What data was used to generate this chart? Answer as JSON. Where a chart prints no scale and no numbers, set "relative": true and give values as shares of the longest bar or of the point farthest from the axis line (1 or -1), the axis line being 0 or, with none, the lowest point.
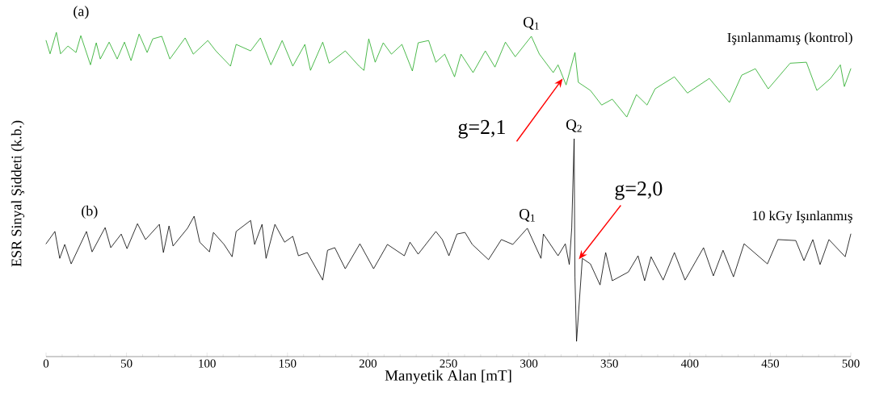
{
  "chart_data": {
    "type": "line",
    "relative": true,
    "xlabel": "Manyetik Alan [mT]",
    "ylabel": "ESR Sinyal Şiddeti (k.b.)",
    "xlim": [
      0,
      500
    ],
    "xticks": [
      0,
      50,
      100,
      150,
      200,
      250,
      300,
      350,
      400,
      450,
      500
    ],
    "annotations": [
      "(a)",
      "(b)",
      {
        "text": "Q$_{1}$",
        "x": 301.5,
        "y": 0.988
      },
      {
        "text": "Q$_{1}$",
        "x": 299.0,
        "y": 0.396
      },
      {
        "text": "Q$_{2}$",
        "x": 328.1,
        "y": 0.672
      },
      {
        "text": "g=2,1",
        "x": 321,
        "y": 0.858
      },
      {
        "text": "g=2,0",
        "x": 331,
        "y": 0.3
      }
    ],
    "series": [
      {
        "name": "Işınlanmamış (kontrol)",
        "color": "#1fa81f",
        "x": [
          0,
          2.5,
          6.4,
          9.0,
          13.6,
          18.6,
          21.6,
          27.6,
          31.2,
          33.7,
          39.2,
          44.2,
          48.7,
          52.8,
          57.8,
          62.8,
          66.3,
          71.9,
          76.9,
          86.4,
          91.5,
          100.5,
          105.5,
          114.6,
          118.1,
          127.1,
          133.2,
          139.7,
          146.7,
          153.3,
          160.8,
          164.3,
          171.9,
          175.9,
          185.9,
          194.5,
          197.5,
          200.5,
          204.5,
          209.5,
          214.6,
          221.1,
          227.6,
          231.2,
          237.7,
          242.2,
          247.7,
          253.8,
          257.8,
          265.3,
          272.9,
          278.9,
          285.4,
          291.5,
          301.5,
          306.5,
          315.1,
          318.1,
          323.1,
          328.6,
          330.7,
          338.2,
          345.2,
          351.8,
          360.8,
          366.8,
          373.4,
          378.4,
          390.4,
          398.5,
          412.1,
          424.6,
          432.2,
          440.7,
          448.7,
          462.3,
          472.4,
          478.9,
          487.4,
          493.5,
          496.0,
          500
        ],
        "values": [
          0.975,
          0.934,
          1.0,
          0.934,
          0.958,
          0.938,
          0.99,
          0.9,
          0.968,
          0.918,
          0.97,
          0.918,
          0.97,
          0.913,
          0.995,
          0.938,
          0.98,
          0.988,
          0.918,
          0.983,
          0.933,
          0.975,
          0.943,
          0.896,
          0.963,
          0.943,
          0.983,
          0.9,
          0.975,
          0.896,
          0.963,
          0.883,
          0.97,
          0.905,
          0.943,
          0.896,
          0.883,
          0.98,
          0.908,
          0.968,
          0.933,
          0.963,
          0.881,
          0.968,
          0.975,
          0.908,
          0.933,
          0.863,
          0.933,
          0.876,
          0.943,
          0.893,
          0.97,
          0.925,
          0.988,
          0.933,
          0.876,
          0.9,
          0.838,
          0.938,
          0.846,
          0.821,
          0.776,
          0.794,
          0.739,
          0.808,
          0.776,
          0.826,
          0.863,
          0.813,
          0.858,
          0.784,
          0.868,
          0.888,
          0.826,
          0.905,
          0.908,
          0.821,
          0.858,
          0.9,
          0.833,
          0.888
        ]
      },
      {
        "name": "10 kGy Işınlanmış",
        "color": "#000000",
        "x": [
          0,
          5.5,
          8.5,
          11.6,
          15.6,
          25.1,
          28.6,
          36.7,
          40.2,
          46.7,
          50.3,
          56.8,
          61.8,
          70.4,
          72.9,
          76.4,
          78.9,
          87.9,
          92.0,
          95.5,
          101.5,
          104.0,
          110.6,
          115.6,
          118.1,
          127.1,
          129.6,
          134.2,
          136.7,
          142.2,
          148.2,
          153.3,
          156.8,
          162.3,
          171.9,
          174.9,
          179.4,
          185.9,
          195.0,
          203.5,
          212.1,
          222.6,
          226.1,
          231.2,
          242.2,
          246.2,
          250.3,
          255.3,
          260.3,
          264.8,
          274.9,
          282.9,
          290.0,
          299.0,
          307.5,
          309.0,
          318.1,
          322.6,
          325.1,
          326.6,
          328.1,
          328.6,
          329.6,
          333.2,
          338.2,
          344.2,
          347.7,
          351.8,
          361.8,
          367.8,
          371.9,
          375.9,
          383.4,
          390.4,
          397.0,
          408.5,
          414.6,
          420.6,
          427.1,
          433.7,
          448.2,
          454.7,
          465.8,
          470.9,
          476.4,
          480.9,
          486.4,
          496.5,
          500
        ],
        "values": [
          0.348,
          0.386,
          0.303,
          0.346,
          0.286,
          0.386,
          0.323,
          0.398,
          0.336,
          0.378,
          0.333,
          0.41,
          0.361,
          0.408,
          0.321,
          0.403,
          0.341,
          0.396,
          0.433,
          0.353,
          0.323,
          0.383,
          0.346,
          0.308,
          0.386,
          0.42,
          0.346,
          0.408,
          0.303,
          0.408,
          0.353,
          0.371,
          0.311,
          0.321,
          0.236,
          0.328,
          0.336,
          0.271,
          0.348,
          0.271,
          0.346,
          0.311,
          0.353,
          0.316,
          0.386,
          0.361,
          0.311,
          0.378,
          0.383,
          0.346,
          0.299,
          0.361,
          0.346,
          0.396,
          0.303,
          0.378,
          0.311,
          0.348,
          0.284,
          0.396,
          0.672,
          0.246,
          0.047,
          0.303,
          0.286,
          0.221,
          0.321,
          0.234,
          0.261,
          0.311,
          0.234,
          0.308,
          0.236,
          0.321,
          0.236,
          0.336,
          0.249,
          0.328,
          0.246,
          0.348,
          0.286,
          0.361,
          0.358,
          0.296,
          0.361,
          0.284,
          0.361,
          0.308,
          0.378
        ]
      }
    ]
  }
}
